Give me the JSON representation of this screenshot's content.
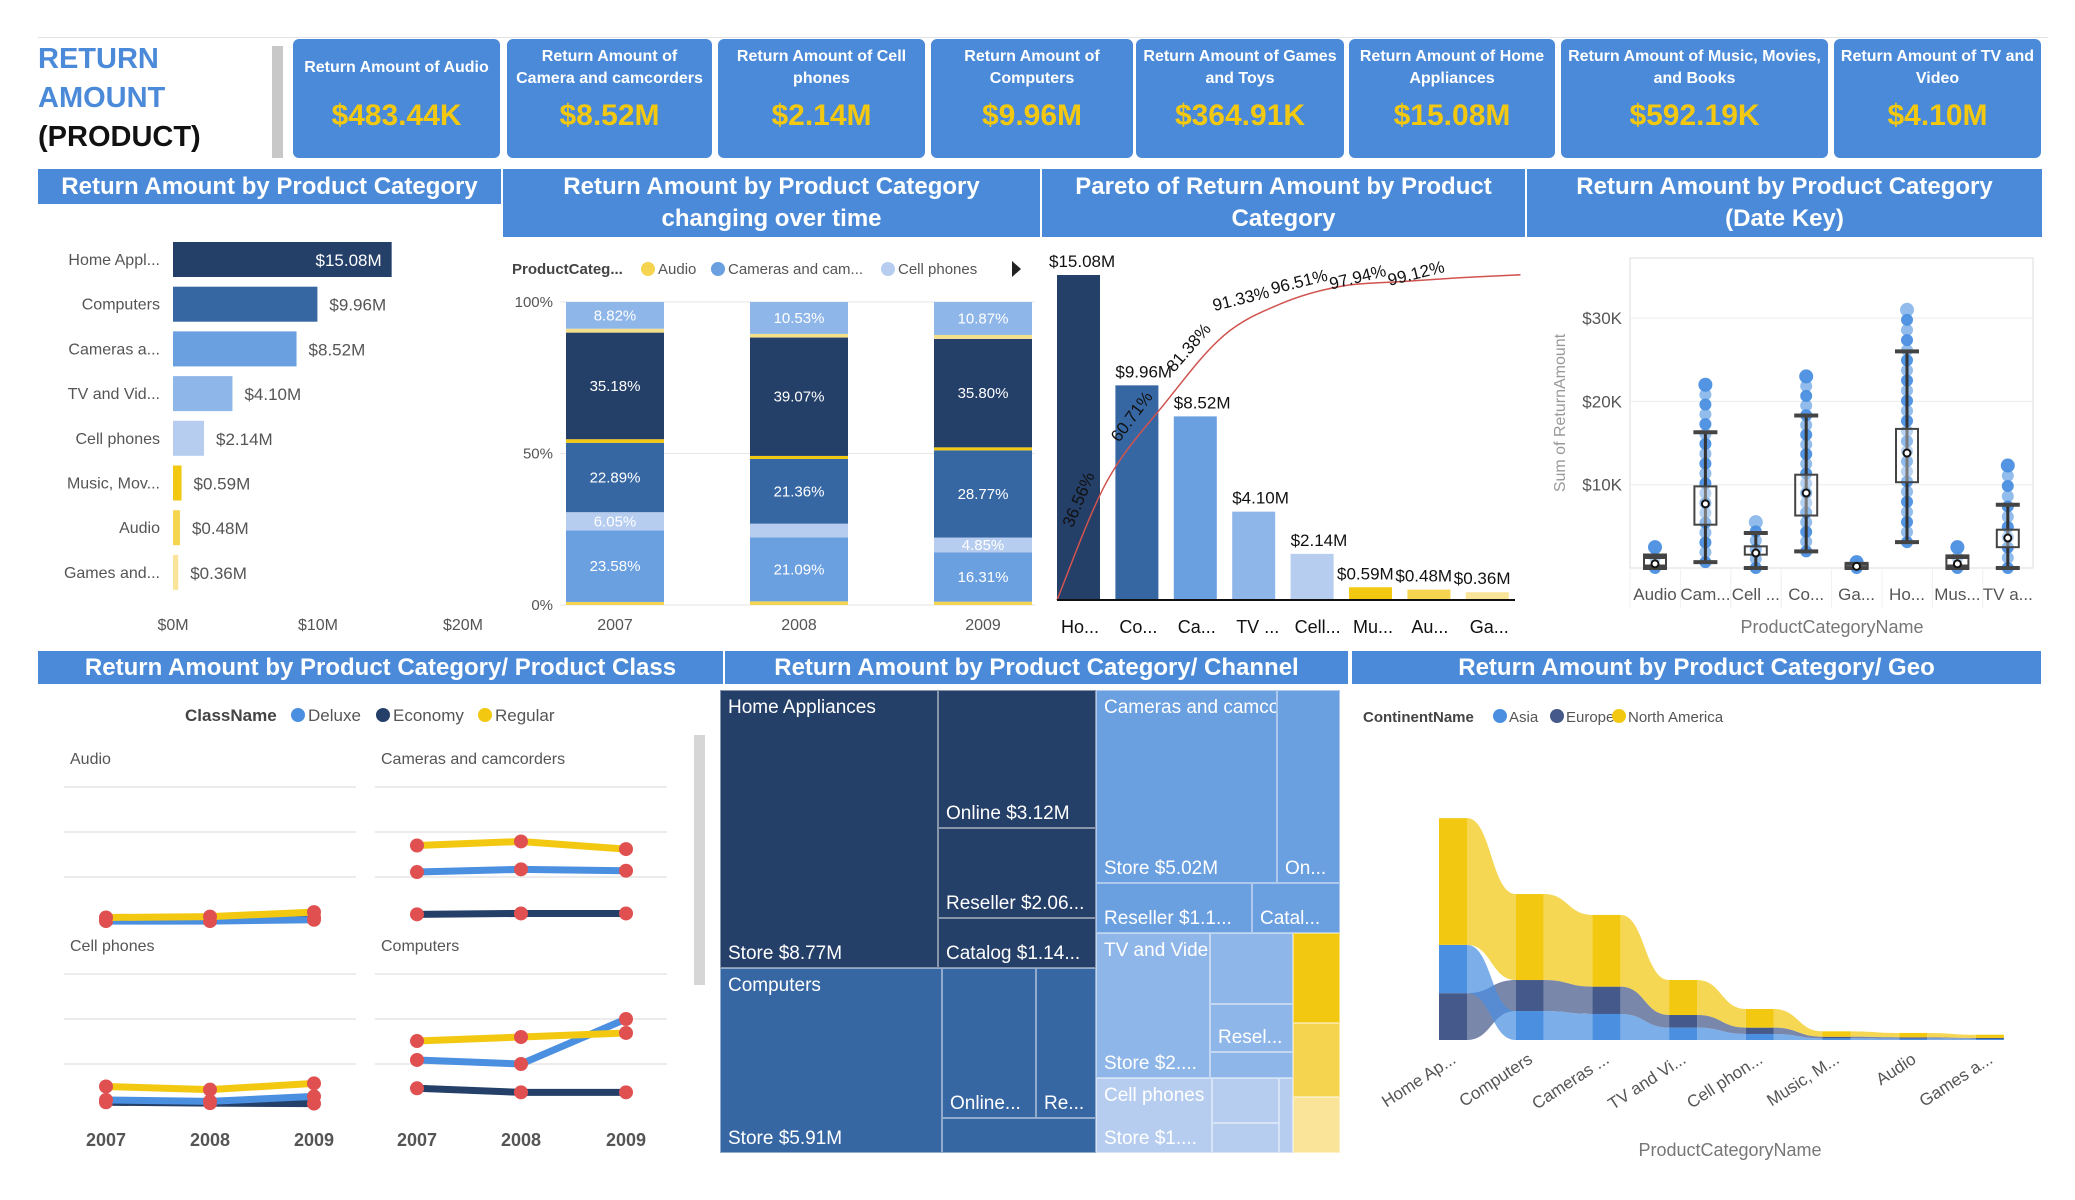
{
  "header": {
    "title_line1": "RETURN",
    "title_line2": "AMOUNT",
    "title_line3": "(PRODUCT)"
  },
  "kpis": [
    {
      "label": "Return Amount of Audio",
      "value": "$483.44K"
    },
    {
      "label": "Return Amount of Camera and camcorders",
      "value": "$8.52M"
    },
    {
      "label": "Return Amount of Cell phones",
      "value": "$2.14M"
    },
    {
      "label": "Return Amount of Computers",
      "value": "$9.96M"
    },
    {
      "label": "Return Amount of Games and Toys",
      "value": "$364.91K"
    },
    {
      "label": "Return Amount of Home Appliances",
      "value": "$15.08M"
    },
    {
      "label": "Return Amount of Music, Movies, and Books",
      "value": "$592.19K"
    },
    {
      "label": "Return Amount of TV and Video",
      "value": "$4.10M"
    }
  ],
  "colors": {
    "header_blue": "#4a8ad8",
    "kpi_value": "#f2c811",
    "home_appliances": "#243f68",
    "computers": "#3767a3",
    "cameras": "#6a9fe0",
    "tv_video": "#8fb6e8",
    "cell_phones": "#b6cdf0",
    "music": "#f2c811",
    "audio": "#f5d54f",
    "games": "#fae49a",
    "pareto_line": "#d0534f",
    "point_red": "#e05050"
  },
  "chart_data": [
    {
      "type": "bar",
      "orientation": "horizontal",
      "title": "Return Amount by Product Category",
      "categories": [
        "Home Appl...",
        "Computers",
        "Cameras a...",
        "TV and Vid...",
        "Cell phones",
        "Music, Mov...",
        "Audio",
        "Games and..."
      ],
      "values": [
        15.08,
        9.96,
        8.52,
        4.1,
        2.14,
        0.59,
        0.48,
        0.36
      ],
      "value_labels": [
        "$15.08M",
        "$9.96M",
        "$8.52M",
        "$4.10M",
        "$2.14M",
        "$0.59M",
        "$0.48M",
        "$0.36M"
      ],
      "colors": [
        "#243f68",
        "#3767a3",
        "#6a9fe0",
        "#8fb6e8",
        "#b6cdf0",
        "#f2c811",
        "#f5d54f",
        "#fae49a"
      ],
      "x_ticks": [
        "$0M",
        "$10M",
        "$20M"
      ],
      "xlim": [
        0,
        20
      ]
    },
    {
      "type": "bar",
      "stacking": "100%",
      "title_line1": "Return Amount by Product Category",
      "title_line2": "changing over time",
      "legend_title": "ProductCateg...",
      "legend": [
        {
          "name": "Audio",
          "color": "#f5d54f"
        },
        {
          "name": "Cameras and cam...",
          "color": "#6a9fe0"
        },
        {
          "name": "Cell phones",
          "color": "#b6cdf0"
        }
      ],
      "categories": [
        "2007",
        "2008",
        "2009"
      ],
      "y_ticks": [
        "0%",
        "50%",
        "100%"
      ],
      "ylim": [
        0,
        100
      ],
      "series": [
        {
          "name": "Audio",
          "color": "#f5d54f",
          "values": [
            1.0,
            1.2,
            1.1
          ],
          "labels": [
            "",
            "",
            ""
          ]
        },
        {
          "name": "Cameras and cam...",
          "color": "#6a9fe0",
          "values": [
            23.58,
            21.09,
            16.31
          ],
          "labels": [
            "23.58%",
            "21.09%",
            "16.31%"
          ]
        },
        {
          "name": "Cell phones",
          "color": "#b6cdf0",
          "values": [
            6.05,
            4.55,
            4.85
          ],
          "labels": [
            "6.05%",
            "",
            "4.85%"
          ]
        },
        {
          "color": "#3767a3",
          "values": [
            22.89,
            21.36,
            28.77
          ],
          "labels": [
            "22.89%",
            "21.36%",
            "28.77%"
          ]
        },
        {
          "color": "#f2c811",
          "values": [
            1.2,
            1.0,
            1.0
          ],
          "labels": [
            "",
            "",
            ""
          ]
        },
        {
          "color": "#243f68",
          "values": [
            35.18,
            39.07,
            35.8
          ],
          "labels": [
            "35.18%",
            "39.07%",
            "35.80%"
          ]
        },
        {
          "color": "#f5e08a",
          "values": [
            1.28,
            1.2,
            1.3
          ],
          "labels": [
            "",
            "",
            ""
          ]
        },
        {
          "color": "#8fb6e8",
          "values": [
            8.82,
            10.53,
            10.87
          ],
          "labels": [
            "8.82%",
            "10.53%",
            "10.87%"
          ]
        }
      ]
    },
    {
      "type": "bar+line",
      "title_line1": "Pareto of Return Amount by Product",
      "title_line2": "Category",
      "categories": [
        "Ho...",
        "Co...",
        "Ca...",
        "TV ...",
        "Cell...",
        "Mu...",
        "Au...",
        "Ga..."
      ],
      "values": [
        15.08,
        9.96,
        8.52,
        4.1,
        2.14,
        0.59,
        0.48,
        0.36
      ],
      "value_labels": [
        "$15.08M",
        "$9.96M",
        "$8.52M",
        "$4.10M",
        "$2.14M",
        "$0.59M",
        "$0.48M",
        "$0.36M"
      ],
      "colors": [
        "#243f68",
        "#3767a3",
        "#6a9fe0",
        "#8fb6e8",
        "#b6cdf0",
        "#f2c811",
        "#f5d54f",
        "#fae49a"
      ],
      "cumulative_pct": [
        36.56,
        60.71,
        81.38,
        91.33,
        96.51,
        97.94,
        99.12,
        100
      ],
      "cumulative_labels": [
        "36.56%",
        "60.71%",
        "81.38%",
        "91.33%",
        "96.51%",
        "97.94%",
        "99.12%"
      ]
    },
    {
      "type": "box",
      "title_line1": "Return Amount by Product Category",
      "title_line2": "(Date Key)",
      "ylabel": "Sum of ReturnAmount",
      "xlabel": "ProductCategoryName",
      "y_ticks": [
        "$10K",
        "$20K",
        "$30K"
      ],
      "y_tick_values": [
        10,
        20,
        30
      ],
      "ylim": [
        0,
        37
      ],
      "categories": [
        "Audio",
        "Cam...",
        "Cell ...",
        "Co...",
        "Ga...",
        "Ho...",
        "Mus...",
        "TV a..."
      ],
      "stats": [
        {
          "min": 0,
          "q1": 0.3,
          "mean": 0.5,
          "q3": 1.2,
          "max": 1.5,
          "top": 2.5
        },
        {
          "min": 0.7,
          "q1": 5.2,
          "mean": 7.7,
          "q3": 9.8,
          "max": 16.3,
          "top": 22
        },
        {
          "min": 0,
          "q1": 1.6,
          "mean": 1.8,
          "q3": 2.6,
          "max": 4.2,
          "top": 5.5
        },
        {
          "min": 2,
          "q1": 6.3,
          "mean": 9,
          "q3": 11.2,
          "max": 18.3,
          "top": 23
        },
        {
          "min": 0,
          "q1": 0.1,
          "mean": 0.2,
          "q3": 0.4,
          "max": 0.5,
          "top": 0.7
        },
        {
          "min": 3.1,
          "q1": 10.3,
          "mean": 13.8,
          "q3": 16.7,
          "max": 26,
          "top": 31
        },
        {
          "min": 0,
          "q1": 0.3,
          "mean": 0.5,
          "q3": 1.2,
          "max": 1.4,
          "top": 2.5
        },
        {
          "min": 0,
          "q1": 2.5,
          "mean": 3.6,
          "q3": 4.6,
          "max": 7.6,
          "top": 12.3
        }
      ]
    },
    {
      "type": "line",
      "title": "Return Amount by Product Category/ Product Class",
      "legend_title": "ClassName",
      "series_names": [
        "Deluxe",
        "Economy",
        "Regular"
      ],
      "series_colors": [
        "#4a8fe0",
        "#243f68",
        "#f2c811"
      ],
      "x": [
        "2007",
        "2008",
        "2009"
      ],
      "panels": [
        {
          "title": "Audio",
          "values": [
            [
              0.02,
              0.02,
              0.05
            ],
            [
              0.05,
              0.05,
              0.1
            ],
            [
              0.1,
              0.12,
              0.22
            ]
          ]
        },
        {
          "title": "Cameras and camcorders",
          "values": [
            [
              1.11,
              1.17,
              1.14
            ],
            [
              0.17,
              0.19,
              0.19
            ],
            [
              1.7,
              1.79,
              1.62
            ]
          ]
        },
        {
          "title": "Cell phones",
          "values": [
            [
              0.2,
              0.17,
              0.28
            ],
            [
              0.15,
              0.13,
              0.12
            ],
            [
              0.5,
              0.43,
              0.57
            ]
          ]
        },
        {
          "title": "Computers",
          "values": [
            [
              1.09,
              1.0,
              2.0
            ],
            [
              0.46,
              0.37,
              0.37
            ],
            [
              1.51,
              1.6,
              1.69
            ]
          ]
        }
      ]
    },
    {
      "type": "treemap",
      "title": "Return Amount by Product Category/ Channel",
      "groups": [
        {
          "name": "Home Appliances",
          "color": "#243f68",
          "tiles": [
            "Store $8.77M",
            "Online $3.12M",
            "Reseller $2.06...",
            "Catalog $1.14..."
          ]
        },
        {
          "name": "Computers",
          "color": "#3767a3",
          "tiles": [
            "Store $5.91M",
            "Online...",
            "Re...",
            ""
          ]
        },
        {
          "name": "Cameras and camcorders",
          "color": "#6a9fe0",
          "tiles": [
            "Store $5.02M",
            "On...",
            "Reseller $1.1...",
            "Catal..."
          ]
        },
        {
          "name": "TV and Video",
          "color": "#8fb6e8",
          "tiles": [
            "Store $2....",
            "",
            "Resel...",
            ""
          ]
        },
        {
          "name": "Cell phones",
          "color": "#b6cdf0",
          "tiles": [
            "Store $1....",
            "",
            "",
            ""
          ]
        },
        {
          "name": "",
          "color": "#f2c811",
          "tiles": [
            ""
          ]
        },
        {
          "name": "",
          "color": "#f5d54f",
          "tiles": [
            ""
          ]
        },
        {
          "name": "",
          "color": "#fae49a",
          "tiles": [
            ""
          ]
        }
      ]
    },
    {
      "type": "ribbon",
      "title": "Return Amount by Product Category/ Geo",
      "legend_title": "ContinentName",
      "xlabel": "ProductCategoryName",
      "categories": [
        "Home Ap...",
        "Computers",
        "Cameras ...",
        "TV and Vi...",
        "Cell phon...",
        "Music, M...",
        "Audio",
        "Games a..."
      ],
      "series": [
        {
          "name": "Asia",
          "color": "#4a8fe0",
          "values": [
            3.29,
            1.97,
            1.77,
            0.84,
            0.41,
            0.11,
            0.09,
            0.07
          ]
        },
        {
          "name": "Europe",
          "color": "#45598b",
          "values": [
            3.18,
            2.11,
            1.86,
            0.86,
            0.43,
            0.11,
            0.09,
            0.07
          ]
        },
        {
          "name": "North America",
          "color": "#f2c811",
          "values": [
            8.62,
            5.85,
            4.88,
            2.38,
            1.27,
            0.37,
            0.3,
            0.22
          ]
        }
      ]
    }
  ]
}
